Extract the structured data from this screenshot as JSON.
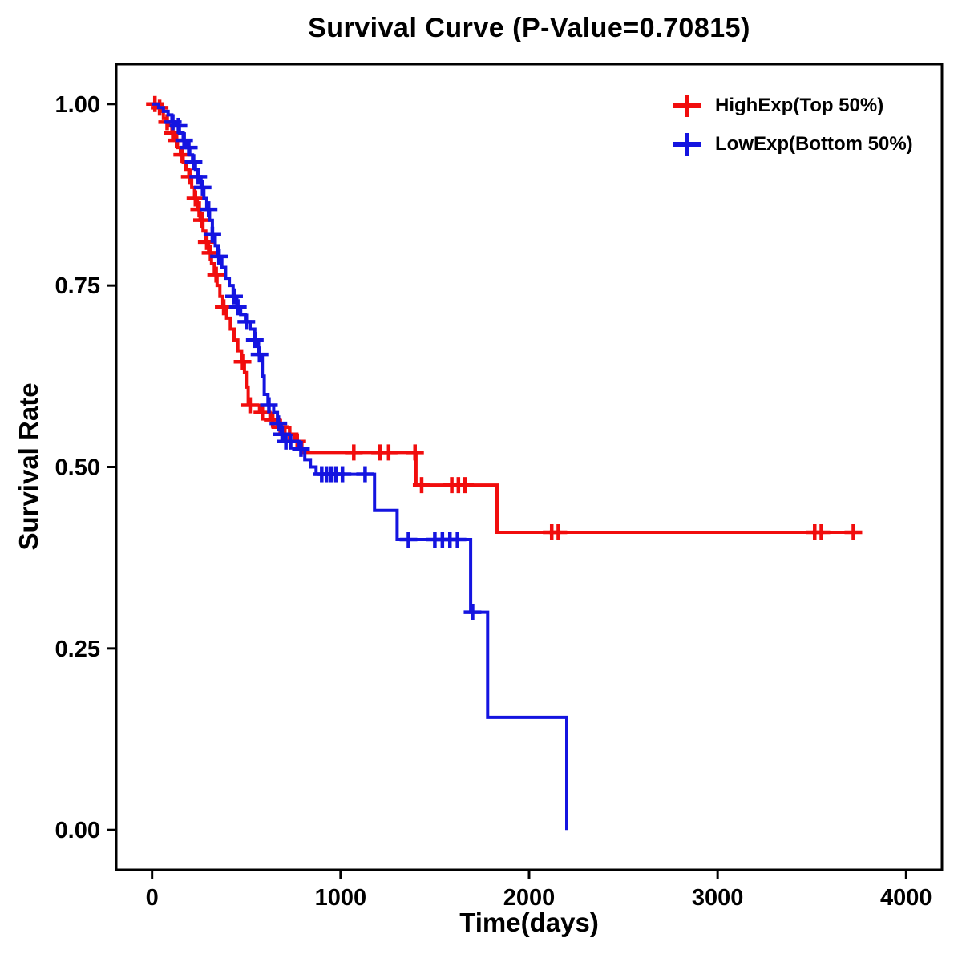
{
  "title": "Survival Curve (P-Value=0.70815)",
  "chart_data": {
    "type": "line",
    "subtype": "kaplan-meier-step",
    "title": "Survival Curve (P-Value=0.70815)",
    "xlabel": "Time(days)",
    "ylabel": "Survival Rate",
    "xlim": [
      -190,
      4190
    ],
    "ylim": [
      -0.055,
      1.055
    ],
    "x_ticks": [
      0,
      1000,
      2000,
      3000,
      4000
    ],
    "y_ticks": [
      0,
      0.25,
      0.5,
      0.75,
      1
    ],
    "grid": false,
    "legend_position": "top-right",
    "frame_color": "#000000",
    "series": [
      {
        "name": "HighExp(Top 50%)",
        "color": "#f10d0d",
        "steps": [
          [
            0,
            1.0
          ],
          [
            25,
            0.995
          ],
          [
            45,
            0.99
          ],
          [
            60,
            0.98
          ],
          [
            75,
            0.975
          ],
          [
            90,
            0.97
          ],
          [
            105,
            0.96
          ],
          [
            120,
            0.95
          ],
          [
            135,
            0.94
          ],
          [
            150,
            0.93
          ],
          [
            165,
            0.92
          ],
          [
            180,
            0.91
          ],
          [
            195,
            0.9
          ],
          [
            210,
            0.885
          ],
          [
            225,
            0.87
          ],
          [
            240,
            0.855
          ],
          [
            255,
            0.84
          ],
          [
            270,
            0.825
          ],
          [
            285,
            0.81
          ],
          [
            300,
            0.795
          ],
          [
            315,
            0.78
          ],
          [
            330,
            0.765
          ],
          [
            345,
            0.75
          ],
          [
            360,
            0.735
          ],
          [
            375,
            0.72
          ],
          [
            395,
            0.705
          ],
          [
            415,
            0.69
          ],
          [
            435,
            0.675
          ],
          [
            455,
            0.66
          ],
          [
            475,
            0.645
          ],
          [
            490,
            0.63
          ],
          [
            500,
            0.61
          ],
          [
            510,
            0.585
          ],
          [
            570,
            0.575
          ],
          [
            625,
            0.565
          ],
          [
            665,
            0.555
          ],
          [
            705,
            0.545
          ],
          [
            755,
            0.535
          ],
          [
            795,
            0.52
          ],
          [
            1400,
            0.475
          ],
          [
            1830,
            0.41
          ],
          [
            3730,
            0.41
          ]
        ],
        "censors": [
          [
            15,
            1.0
          ],
          [
            40,
            0.995
          ],
          [
            80,
            0.975
          ],
          [
            110,
            0.96
          ],
          [
            130,
            0.95
          ],
          [
            160,
            0.93
          ],
          [
            200,
            0.9
          ],
          [
            230,
            0.87
          ],
          [
            250,
            0.855
          ],
          [
            265,
            0.84
          ],
          [
            290,
            0.81
          ],
          [
            310,
            0.795
          ],
          [
            340,
            0.765
          ],
          [
            380,
            0.72
          ],
          [
            480,
            0.645
          ],
          [
            520,
            0.585
          ],
          [
            585,
            0.575
          ],
          [
            640,
            0.565
          ],
          [
            680,
            0.555
          ],
          [
            730,
            0.545
          ],
          [
            770,
            0.535
          ],
          [
            1070,
            0.52
          ],
          [
            1210,
            0.52
          ],
          [
            1255,
            0.52
          ],
          [
            1395,
            0.52
          ],
          [
            1430,
            0.475
          ],
          [
            1590,
            0.475
          ],
          [
            1625,
            0.475
          ],
          [
            1660,
            0.475
          ],
          [
            2120,
            0.41
          ],
          [
            2155,
            0.41
          ],
          [
            3515,
            0.41
          ],
          [
            3550,
            0.41
          ],
          [
            3720,
            0.41
          ]
        ]
      },
      {
        "name": "LowExp(Bottom 50%)",
        "color": "#1414e0",
        "steps": [
          [
            0,
            1.0
          ],
          [
            35,
            0.995
          ],
          [
            60,
            0.99
          ],
          [
            85,
            0.985
          ],
          [
            105,
            0.975
          ],
          [
            125,
            0.97
          ],
          [
            145,
            0.96
          ],
          [
            165,
            0.95
          ],
          [
            185,
            0.94
          ],
          [
            200,
            0.93
          ],
          [
            215,
            0.92
          ],
          [
            230,
            0.91
          ],
          [
            245,
            0.9
          ],
          [
            260,
            0.885
          ],
          [
            275,
            0.87
          ],
          [
            290,
            0.855
          ],
          [
            305,
            0.84
          ],
          [
            320,
            0.82
          ],
          [
            335,
            0.805
          ],
          [
            350,
            0.79
          ],
          [
            370,
            0.775
          ],
          [
            390,
            0.76
          ],
          [
            410,
            0.75
          ],
          [
            430,
            0.735
          ],
          [
            450,
            0.72
          ],
          [
            470,
            0.71
          ],
          [
            495,
            0.7
          ],
          [
            520,
            0.69
          ],
          [
            545,
            0.675
          ],
          [
            565,
            0.655
          ],
          [
            585,
            0.625
          ],
          [
            595,
            0.6
          ],
          [
            615,
            0.585
          ],
          [
            645,
            0.575
          ],
          [
            665,
            0.56
          ],
          [
            685,
            0.545
          ],
          [
            705,
            0.535
          ],
          [
            780,
            0.525
          ],
          [
            810,
            0.51
          ],
          [
            840,
            0.5
          ],
          [
            870,
            0.49
          ],
          [
            1180,
            0.44
          ],
          [
            1300,
            0.4
          ],
          [
            1690,
            0.3
          ],
          [
            1780,
            0.155
          ],
          [
            2200,
            0.0
          ]
        ],
        "censors": [
          [
            110,
            0.975
          ],
          [
            140,
            0.97
          ],
          [
            170,
            0.95
          ],
          [
            195,
            0.94
          ],
          [
            220,
            0.92
          ],
          [
            245,
            0.9
          ],
          [
            268,
            0.885
          ],
          [
            300,
            0.855
          ],
          [
            320,
            0.82
          ],
          [
            355,
            0.79
          ],
          [
            435,
            0.735
          ],
          [
            455,
            0.72
          ],
          [
            500,
            0.7
          ],
          [
            545,
            0.675
          ],
          [
            570,
            0.655
          ],
          [
            620,
            0.585
          ],
          [
            670,
            0.56
          ],
          [
            690,
            0.545
          ],
          [
            710,
            0.535
          ],
          [
            735,
            0.535
          ],
          [
            790,
            0.525
          ],
          [
            900,
            0.49
          ],
          [
            925,
            0.49
          ],
          [
            950,
            0.49
          ],
          [
            975,
            0.49
          ],
          [
            1010,
            0.49
          ],
          [
            1130,
            0.49
          ],
          [
            1360,
            0.4
          ],
          [
            1500,
            0.4
          ],
          [
            1540,
            0.4
          ],
          [
            1580,
            0.4
          ],
          [
            1620,
            0.4
          ],
          [
            1700,
            0.3
          ]
        ]
      }
    ]
  }
}
